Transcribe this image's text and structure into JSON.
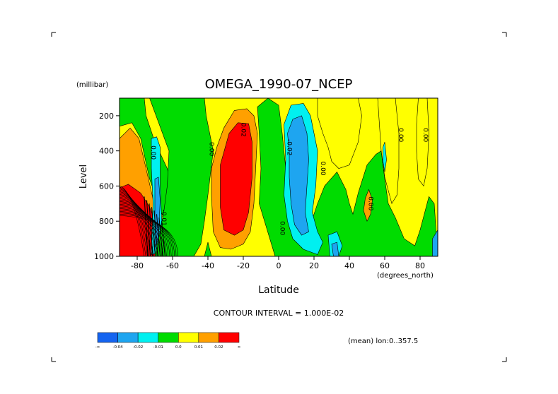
{
  "chart_data": {
    "type": "heatmap",
    "title": "OMEGA_1990-07_NCEP",
    "xlabel": "Latitude",
    "x_units": "(degrees_north)",
    "ylabel": "Level",
    "y_units": "(millibar)",
    "xlim": [
      -90,
      90
    ],
    "ylim": [
      1000,
      100
    ],
    "x_ticks": [
      -80,
      -60,
      -40,
      -20,
      0,
      20,
      40,
      60,
      80
    ],
    "y_ticks": [
      200,
      400,
      600,
      800,
      1000
    ],
    "contour_interval_text": "CONTOUR INTERVAL = 1.000E-02",
    "mean_text": "(mean) lon:0..357.5",
    "contour_labels": [
      {
        "text": "0.00",
        "lat": -72,
        "lev": 410
      },
      {
        "text": "0.00",
        "lat": -39,
        "lev": 390
      },
      {
        "text": "0.02",
        "lat": -21,
        "lev": 280
      },
      {
        "text": "-0.02",
        "lat": 5,
        "lev": 380
      },
      {
        "text": "0.00",
        "lat": 1,
        "lev": 840
      },
      {
        "text": "-0.01",
        "lat": -66,
        "lev": 780
      },
      {
        "text": "0.00",
        "lat": 24,
        "lev": 500
      },
      {
        "text": "0.00",
        "lat": 51,
        "lev": 700
      },
      {
        "text": "0.00",
        "lat": 68,
        "lev": 310
      },
      {
        "text": "0.00",
        "lat": 82,
        "lev": 310
      }
    ],
    "legend": {
      "colors": [
        "#1464f0",
        "#1ea5f0",
        "#00f0f0",
        "#00dc00",
        "#ffff00",
        "#ffa000",
        "#ff0000"
      ],
      "labels": [
        "-∞",
        "-0.04",
        "-0.02",
        "-0.01",
        "0.0",
        "0.01",
        "0.02",
        "∞"
      ]
    },
    "regions": [
      {
        "color": "#ffff00",
        "pts": [
          [
            -90,
            100
          ],
          [
            90,
            100
          ],
          [
            90,
            1000
          ],
          [
            -90,
            1000
          ]
        ]
      },
      {
        "color": "#00dc00",
        "pts": [
          [
            -90,
            100
          ],
          [
            -76,
            100
          ],
          [
            -75,
            200
          ],
          [
            -70,
            350
          ],
          [
            -63,
            500
          ],
          [
            -57,
            700
          ],
          [
            -53,
            850
          ],
          [
            -53,
            1000
          ],
          [
            -90,
            1000
          ]
        ]
      },
      {
        "color": "#ffff00",
        "pts": [
          [
            -90,
            260
          ],
          [
            -83,
            240
          ],
          [
            -78,
            330
          ],
          [
            -73,
            560
          ],
          [
            -66,
            760
          ],
          [
            -60,
            900
          ],
          [
            -58,
            1000
          ],
          [
            -90,
            1000
          ]
        ]
      },
      {
        "color": "#ffa000",
        "pts": [
          [
            -90,
            480
          ],
          [
            -90,
            330
          ],
          [
            -84,
            270
          ],
          [
            -79,
            330
          ],
          [
            -75,
            500
          ],
          [
            -70,
            720
          ],
          [
            -64,
            890
          ],
          [
            -61,
            1000
          ],
          [
            -90,
            1000
          ]
        ]
      },
      {
        "color": "#ff0000",
        "pts": [
          [
            -90,
            610
          ],
          [
            -85,
            590
          ],
          [
            -78,
            640
          ],
          [
            -73,
            720
          ],
          [
            -68,
            850
          ],
          [
            -65,
            1000
          ],
          [
            -90,
            1000
          ]
        ]
      },
      {
        "color": "#00f0f0",
        "pts": [
          [
            -72,
            330
          ],
          [
            -69,
            320
          ],
          [
            -67,
            380
          ],
          [
            -67,
            600
          ],
          [
            -66,
            820
          ],
          [
            -68,
            980
          ],
          [
            -72,
            990
          ],
          [
            -71,
            700
          ],
          [
            -72,
            500
          ]
        ]
      },
      {
        "color": "#1ea5f0",
        "pts": [
          [
            -70,
            560
          ],
          [
            -68,
            550
          ],
          [
            -67,
            680
          ],
          [
            -68,
            900
          ],
          [
            -70,
            950
          ],
          [
            -70,
            750
          ]
        ]
      },
      {
        "color": "#00dc00",
        "pts": [
          [
            -73,
            100
          ],
          [
            -42,
            100
          ],
          [
            -41,
            200
          ],
          [
            -37,
            400
          ],
          [
            -40,
            650
          ],
          [
            -42,
            800
          ],
          [
            -44,
            930
          ],
          [
            -48,
            1000
          ],
          [
            -70,
            1000
          ],
          [
            -68,
            900
          ],
          [
            -65,
            750
          ],
          [
            -63,
            600
          ],
          [
            -62,
            400
          ]
        ]
      },
      {
        "color": "#00dc00",
        "pts": [
          [
            -42,
            1000
          ],
          [
            -40,
            920
          ],
          [
            -38,
            1000
          ]
        ]
      },
      {
        "color": "#00dc00",
        "pts": [
          [
            -6,
            100
          ],
          [
            0,
            140
          ],
          [
            2,
            300
          ],
          [
            5,
            600
          ],
          [
            9,
            850
          ],
          [
            13,
            950
          ],
          [
            16,
            880
          ],
          [
            22,
            700
          ],
          [
            26,
            600
          ],
          [
            33,
            520
          ],
          [
            38,
            620
          ],
          [
            40,
            700
          ],
          [
            42,
            760
          ],
          [
            45,
            640
          ],
          [
            50,
            480
          ],
          [
            55,
            420
          ],
          [
            58,
            400
          ],
          [
            60,
            560
          ],
          [
            62,
            700
          ],
          [
            66,
            780
          ],
          [
            71,
            900
          ],
          [
            77,
            940
          ],
          [
            80,
            850
          ],
          [
            85,
            660
          ],
          [
            88,
            700
          ],
          [
            90,
            1000
          ],
          [
            -2,
            1000
          ],
          [
            -5,
            900
          ],
          [
            -8,
            800
          ],
          [
            -11,
            700
          ],
          [
            -10,
            500
          ],
          [
            -11,
            300
          ],
          [
            -12,
            150
          ]
        ]
      },
      {
        "color": "#ffff00",
        "pts": [
          [
            56,
            100
          ],
          [
            66,
            100
          ],
          [
            68,
            300
          ],
          [
            68,
            500
          ],
          [
            67,
            650
          ],
          [
            64,
            700
          ],
          [
            60,
            550
          ],
          [
            58,
            400
          ],
          [
            57,
            250
          ]
        ]
      },
      {
        "color": "#ffff00",
        "pts": [
          [
            79,
            100
          ],
          [
            84,
            100
          ],
          [
            85,
            300
          ],
          [
            84,
            500
          ],
          [
            82,
            600
          ],
          [
            79,
            560
          ],
          [
            78,
            400
          ],
          [
            78,
            250
          ]
        ]
      },
      {
        "color": "#ffff00",
        "pts": [
          [
            22,
            100
          ],
          [
            45,
            100
          ],
          [
            47,
            200
          ],
          [
            45,
            350
          ],
          [
            40,
            480
          ],
          [
            34,
            500
          ],
          [
            30,
            460
          ],
          [
            28,
            380
          ],
          [
            25,
            300
          ],
          [
            22,
            200
          ]
        ]
      },
      {
        "color": "#ffa000",
        "pts": [
          [
            -35,
            380
          ],
          [
            -31,
            270
          ],
          [
            -25,
            170
          ],
          [
            -18,
            160
          ],
          [
            -14,
            200
          ],
          [
            -12,
            300
          ],
          [
            -13,
            500
          ],
          [
            -14,
            700
          ],
          [
            -16,
            860
          ],
          [
            -20,
            930
          ],
          [
            -27,
            960
          ],
          [
            -33,
            950
          ],
          [
            -37,
            860
          ],
          [
            -38,
            650
          ],
          [
            -38,
            500
          ]
        ]
      },
      {
        "color": "#ff0000",
        "pts": [
          [
            -33,
            480
          ],
          [
            -28,
            300
          ],
          [
            -23,
            240
          ],
          [
            -17,
            245
          ],
          [
            -15,
            350
          ],
          [
            -15,
            550
          ],
          [
            -17,
            750
          ],
          [
            -20,
            850
          ],
          [
            -25,
            880
          ],
          [
            -31,
            850
          ],
          [
            -33,
            720
          ]
        ]
      },
      {
        "color": "#00f0f0",
        "pts": [
          [
            3,
            250
          ],
          [
            7,
            140
          ],
          [
            14,
            130
          ],
          [
            18,
            200
          ],
          [
            22,
            400
          ],
          [
            21,
            600
          ],
          [
            19,
            750
          ],
          [
            22,
            860
          ],
          [
            25,
            920
          ],
          [
            22,
            990
          ],
          [
            14,
            960
          ],
          [
            8,
            900
          ],
          [
            5,
            800
          ],
          [
            3,
            650
          ],
          [
            4,
            450
          ]
        ]
      },
      {
        "color": "#1ea5f0",
        "pts": [
          [
            5,
            300
          ],
          [
            8,
            220
          ],
          [
            13,
            200
          ],
          [
            16,
            300
          ],
          [
            17,
            450
          ],
          [
            16,
            600
          ],
          [
            15,
            750
          ],
          [
            17,
            860
          ],
          [
            13,
            880
          ],
          [
            9,
            820
          ],
          [
            7,
            700
          ],
          [
            6,
            550
          ],
          [
            6,
            400
          ]
        ]
      },
      {
        "color": "#00f0f0",
        "pts": [
          [
            28,
            880
          ],
          [
            33,
            860
          ],
          [
            36,
            940
          ],
          [
            34,
            1000
          ],
          [
            29,
            1000
          ]
        ]
      },
      {
        "color": "#1ea5f0",
        "pts": [
          [
            30,
            930
          ],
          [
            33,
            920
          ],
          [
            34,
            1000
          ],
          [
            31,
            1000
          ]
        ]
      },
      {
        "color": "#1ea5f0",
        "pts": [
          [
            87,
            900
          ],
          [
            90,
            850
          ],
          [
            90,
            1000
          ],
          [
            87,
            1000
          ]
        ]
      },
      {
        "color": "#ffa000",
        "pts": [
          [
            49,
            670
          ],
          [
            51,
            620
          ],
          [
            53,
            680
          ],
          [
            52,
            760
          ],
          [
            50,
            800
          ],
          [
            48,
            740
          ]
        ]
      },
      {
        "color": "#00f0f0",
        "pts": [
          [
            59,
            380
          ],
          [
            60,
            350
          ],
          [
            61,
            450
          ],
          [
            60,
            520
          ],
          [
            59,
            460
          ]
        ]
      }
    ]
  }
}
